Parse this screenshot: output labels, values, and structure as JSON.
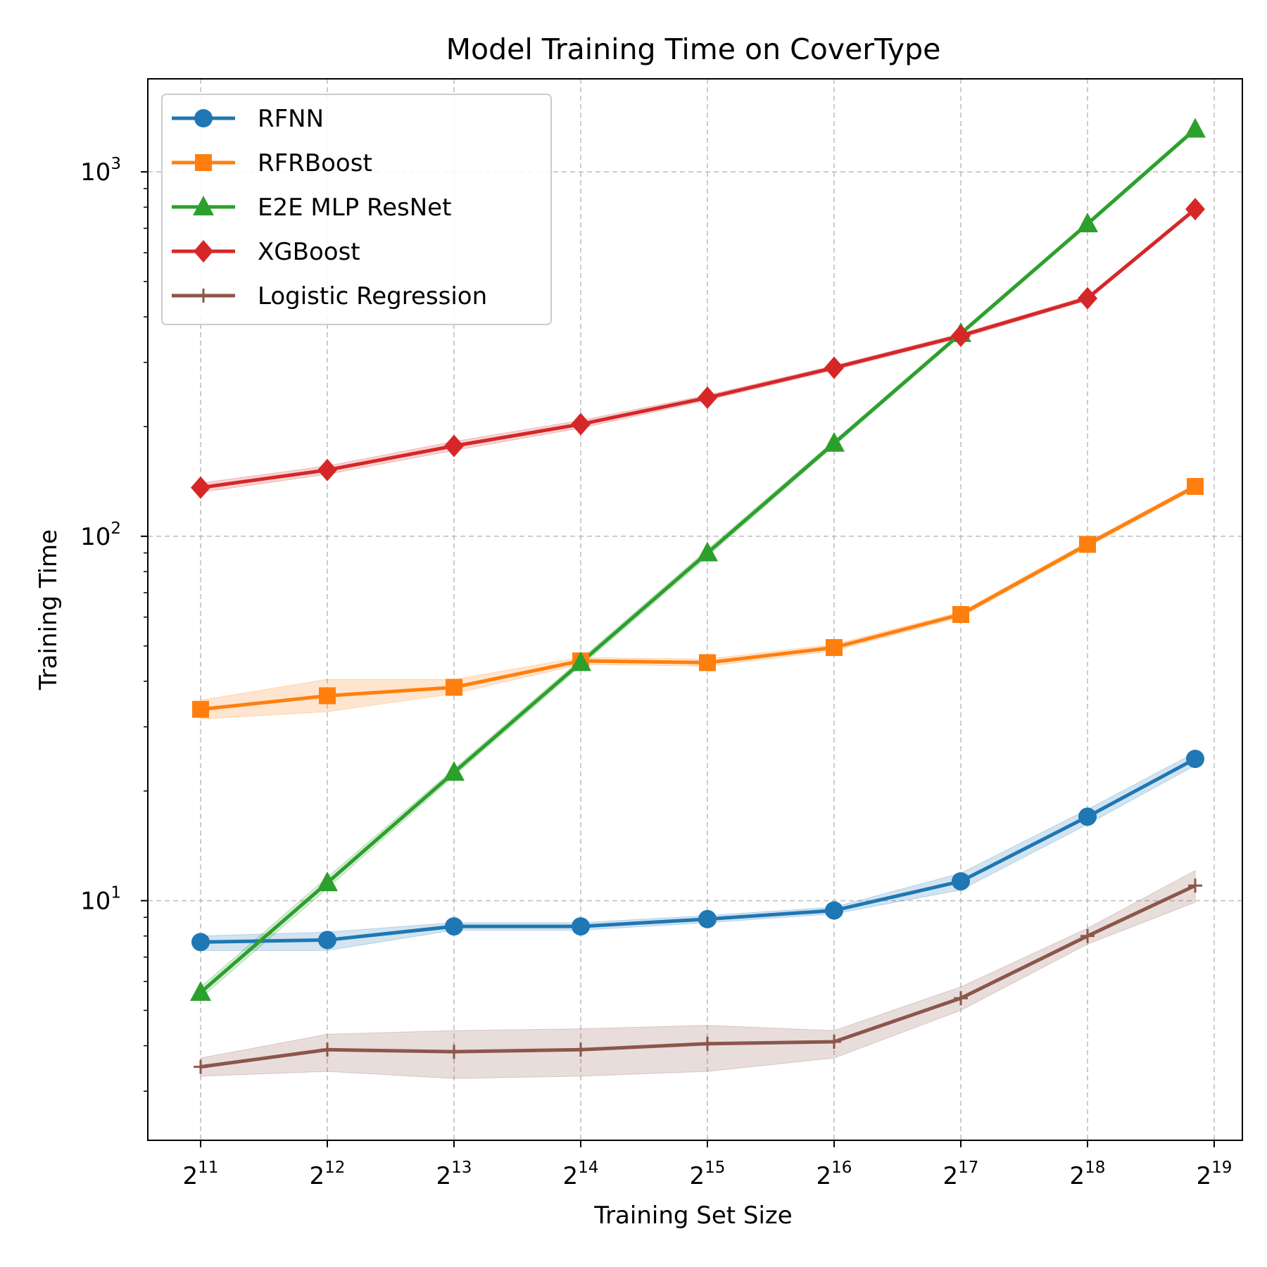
{
  "chart_data": {
    "type": "line",
    "title": "Model Training Time on CoverType",
    "xlabel": "Training Set Size",
    "ylabel": "Training Time",
    "xscale": "log2",
    "yscale": "log10",
    "xlim": [
      1.55,
      19.0
    ],
    "ylim": [
      2.2,
      1800
    ],
    "x_ticks": [
      {
        "value": 11,
        "base": "2",
        "exp": "11"
      },
      {
        "value": 12,
        "base": "2",
        "exp": "12"
      },
      {
        "value": 13,
        "base": "2",
        "exp": "13"
      },
      {
        "value": 14,
        "base": "2",
        "exp": "14"
      },
      {
        "value": 15,
        "base": "2",
        "exp": "15"
      },
      {
        "value": 16,
        "base": "2",
        "exp": "16"
      },
      {
        "value": 17,
        "base": "2",
        "exp": "17"
      },
      {
        "value": 18,
        "base": "2",
        "exp": "18"
      },
      {
        "value": 19,
        "base": "2",
        "exp": "19"
      }
    ],
    "y_ticks": [
      {
        "value": 10,
        "base": "10",
        "exp": "1"
      },
      {
        "value": 100,
        "base": "10",
        "exp": "2"
      },
      {
        "value": 1000,
        "base": "10",
        "exp": "3"
      }
    ],
    "grid": true,
    "legend_position": "top-left",
    "x": [
      "2^11",
      "2^12",
      "2^13",
      "2^14",
      "2^15",
      "2^16",
      "2^17",
      "2^18",
      "2^18.8"
    ],
    "x_log2": [
      11,
      12,
      13,
      14,
      15,
      16,
      17,
      18,
      18.85
    ],
    "series": [
      {
        "name": "RFNN",
        "color": "#1f77b4",
        "marker": "circle",
        "values": [
          7.7,
          7.8,
          8.5,
          8.5,
          8.9,
          9.4,
          11.3,
          17,
          24.5
        ],
        "lower": [
          7.3,
          7.3,
          8.3,
          8.3,
          8.7,
          9.2,
          10.7,
          16.2,
          23.5
        ],
        "upper": [
          8.0,
          8.2,
          8.7,
          8.7,
          9.1,
          9.6,
          11.9,
          17.8,
          25.5
        ]
      },
      {
        "name": "RFRBoost",
        "color": "#ff7f0e",
        "marker": "square",
        "values": [
          33.5,
          36.5,
          38.5,
          45.5,
          45,
          49.5,
          61,
          95,
          137
        ],
        "lower": [
          31.5,
          33,
          37,
          44.5,
          44,
          48.5,
          60,
          93.5,
          135
        ],
        "upper": [
          35.5,
          40.5,
          40.5,
          46.5,
          46,
          50.5,
          62,
          96.5,
          139
        ]
      },
      {
        "name": "E2E MLP ResNet",
        "color": "#2ca02c",
        "marker": "triangle",
        "values": [
          5.6,
          11.2,
          22.5,
          45,
          90,
          180,
          360,
          720,
          1310
        ],
        "lower": [
          5.4,
          10.8,
          22,
          44,
          88,
          177,
          355,
          710,
          1290
        ],
        "upper": [
          5.8,
          11.6,
          23,
          46,
          92,
          183,
          365,
          730,
          1330
        ]
      },
      {
        "name": "XGBoost",
        "color": "#d62728",
        "marker": "diamond",
        "values": [
          136,
          152,
          177,
          203,
          240,
          290,
          355,
          450,
          790
        ],
        "lower": [
          132,
          148,
          172,
          198,
          236,
          286,
          350,
          444,
          780
        ],
        "upper": [
          140,
          156,
          182,
          208,
          244,
          294,
          360,
          456,
          800
        ]
      },
      {
        "name": "Logistic Regression",
        "color": "#8c564b",
        "marker": "plus",
        "values": [
          3.5,
          3.9,
          3.85,
          3.9,
          4.05,
          4.1,
          5.4,
          8,
          11
        ],
        "lower": [
          3.3,
          3.4,
          3.25,
          3.3,
          3.4,
          3.7,
          5.0,
          7.6,
          9.9
        ],
        "upper": [
          3.7,
          4.3,
          4.4,
          4.45,
          4.55,
          4.4,
          5.8,
          8.4,
          12.1
        ]
      }
    ]
  }
}
